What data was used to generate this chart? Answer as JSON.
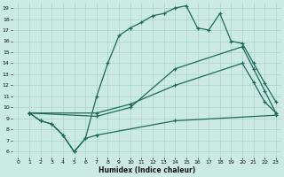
{
  "xlabel": "Humidex (Indice chaleur)",
  "bg_color": "#cceae4",
  "line_color": "#1a6b5a",
  "grid_color": "#aad4cc",
  "xlim": [
    -0.5,
    23.5
  ],
  "ylim": [
    5.5,
    19.5
  ],
  "yticks": [
    6,
    7,
    8,
    9,
    10,
    11,
    12,
    13,
    14,
    15,
    16,
    17,
    18,
    19
  ],
  "xticks": [
    0,
    1,
    2,
    3,
    4,
    5,
    6,
    7,
    8,
    9,
    10,
    11,
    12,
    13,
    14,
    15,
    16,
    17,
    18,
    19,
    20,
    21,
    22,
    23
  ],
  "line_zigzag_x": [
    1,
    2,
    3,
    4,
    5,
    6,
    7,
    14,
    23
  ],
  "line_zigzag_y": [
    9.5,
    8.8,
    8.5,
    7.5,
    6.0,
    7.2,
    7.5,
    8.8,
    9.3
  ],
  "line_peak_x": [
    1,
    2,
    3,
    4,
    5,
    6,
    7,
    8,
    9,
    10,
    11,
    12,
    13,
    14,
    15,
    16,
    17,
    18,
    19,
    20,
    21,
    22,
    23
  ],
  "line_peak_y": [
    9.5,
    8.8,
    8.5,
    7.5,
    6.0,
    7.2,
    11.0,
    14.0,
    16.5,
    17.2,
    17.7,
    18.3,
    18.5,
    19.0,
    19.2,
    17.2,
    17.0,
    18.5,
    16.0,
    15.8,
    14.0,
    12.2,
    10.5
  ],
  "line_slow1_x": [
    1,
    7,
    10,
    14,
    20,
    21,
    22,
    23
  ],
  "line_slow1_y": [
    9.5,
    9.5,
    10.3,
    12.0,
    14.0,
    12.3,
    10.5,
    9.5
  ],
  "line_slow2_x": [
    1,
    7,
    10,
    14,
    20,
    21,
    22,
    23
  ],
  "line_slow2_y": [
    9.5,
    9.2,
    10.0,
    13.5,
    15.5,
    13.5,
    11.5,
    9.5
  ]
}
